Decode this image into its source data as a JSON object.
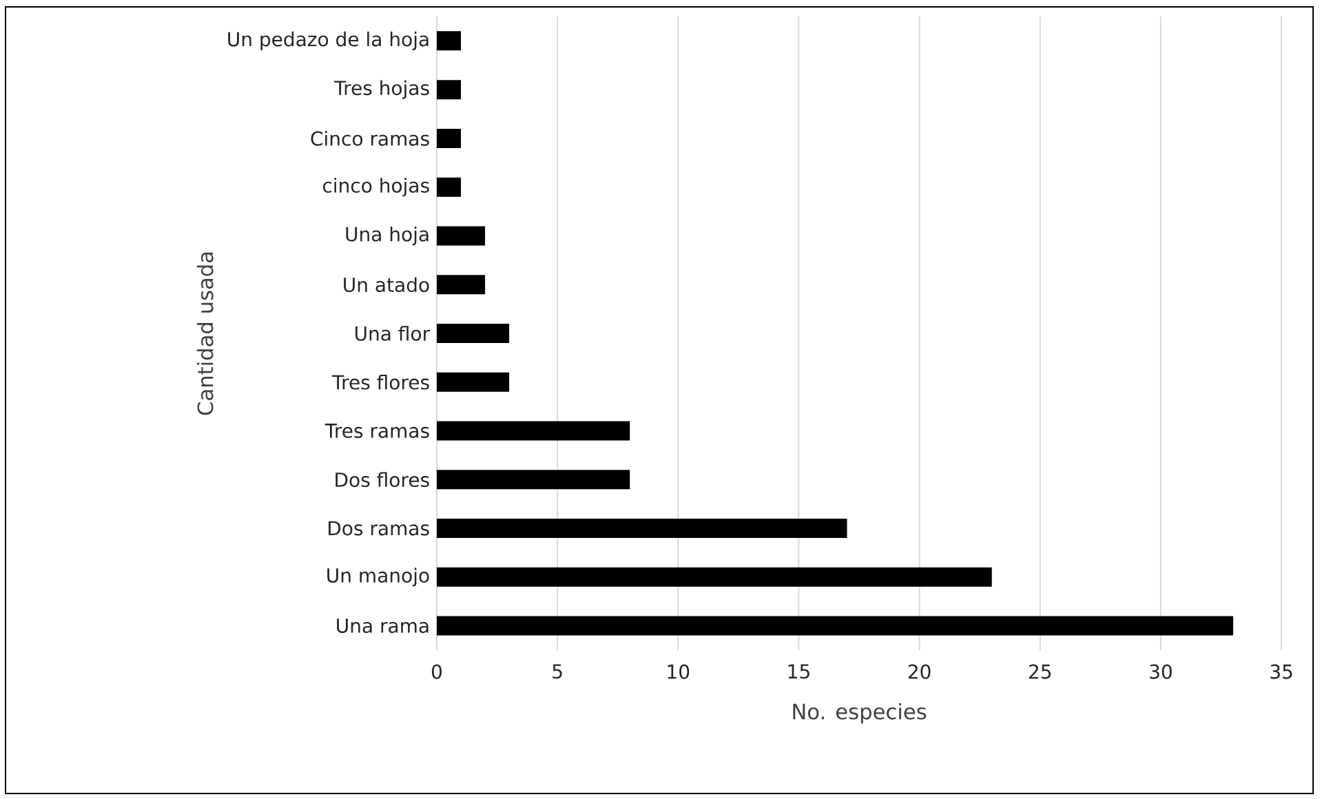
{
  "chart_data": {
    "type": "bar",
    "orientation": "horizontal",
    "xlabel": "No. especies",
    "ylabel": "Cantidad usada",
    "categories": [
      "Un pedazo de la hoja",
      "Tres hojas",
      "Cinco ramas",
      "cinco hojas",
      "Una hoja",
      "Un atado",
      "Una flor",
      "Tres flores",
      "Tres ramas",
      "Dos flores",
      "Dos ramas",
      "Un manojo",
      "Una rama"
    ],
    "values": [
      1,
      1,
      1,
      1,
      2,
      2,
      3,
      3,
      8,
      8,
      17,
      23,
      33
    ],
    "color": "#000000",
    "xlim": [
      0,
      35
    ],
    "xticks": [
      0,
      5,
      10,
      15,
      20,
      25,
      30,
      35
    ],
    "grid": "x"
  }
}
